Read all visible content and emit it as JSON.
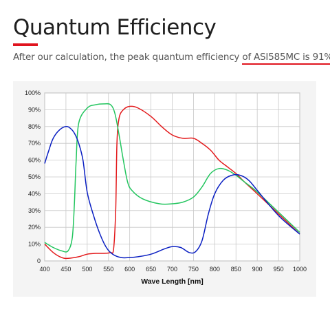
{
  "page": {
    "heading": "Quantum Efficiency",
    "subtitle_prefix": "After our calculation, the peak quantum efficiency ",
    "subtitle_highlight": "of ASI585MC is 91%",
    "subtitle_suffix": ".",
    "accent_color": "#e0141e"
  },
  "chart_data": {
    "type": "line",
    "title": "",
    "xlabel": "Wave Length [nm]",
    "ylabel": "",
    "xlim": [
      400,
      1000
    ],
    "ylim": [
      0,
      100
    ],
    "grid": true,
    "x_ticks": [
      "400",
      "450",
      "500",
      "550",
      "600",
      "650",
      "700",
      "750",
      "800",
      "850",
      "900",
      "950",
      "1000"
    ],
    "y_ticks": [
      "0",
      "10%",
      "20%",
      "30%",
      "40%",
      "50%",
      "60%",
      "70%",
      "80%",
      "90%",
      "100%"
    ],
    "series": [
      {
        "color": "#e31a1c",
        "x": [
          400,
          420,
          440,
          455,
          480,
          500,
          520,
          540,
          555,
          562,
          567,
          570,
          575,
          585,
          600,
          620,
          650,
          675,
          700,
          725,
          750,
          770,
          790,
          810,
          830,
          850,
          870,
          900,
          950,
          1000
        ],
        "y": [
          10,
          5,
          2,
          1.5,
          2.5,
          4,
          4.5,
          4.5,
          5,
          7,
          30,
          70,
          85,
          90,
          92,
          91,
          86,
          80,
          75,
          73,
          73,
          70,
          66,
          60,
          56,
          52,
          47,
          40,
          28,
          16
        ]
      },
      {
        "color": "#22c55e",
        "x": [
          400,
          420,
          440,
          455,
          465,
          470,
          474,
          480,
          500,
          520,
          540,
          555,
          565,
          575,
          585,
          595,
          605,
          630,
          670,
          700,
          725,
          750,
          770,
          790,
          810,
          830,
          850,
          870,
          900,
          950,
          1000
        ],
        "y": [
          11,
          8,
          6,
          6,
          14,
          35,
          60,
          82,
          91,
          93,
          93.5,
          93,
          88,
          75,
          60,
          47,
          42,
          37,
          34,
          34,
          35,
          38,
          44,
          52,
          55,
          54,
          51,
          47,
          41,
          29,
          17
        ]
      },
      {
        "color": "#0a1fc2",
        "x": [
          400,
          410,
          420,
          435,
          450,
          460,
          470,
          480,
          490,
          500,
          515,
          530,
          545,
          560,
          580,
          600,
          620,
          650,
          680,
          700,
          720,
          740,
          755,
          770,
          785,
          800,
          820,
          840,
          860,
          880,
          900,
          950,
          1000
        ],
        "y": [
          58,
          66,
          73,
          78,
          80,
          79,
          76,
          70,
          60,
          41,
          27,
          16,
          8,
          4,
          2,
          2,
          2.5,
          4,
          7,
          8.5,
          8,
          5,
          5.5,
          12,
          28,
          40,
          48,
          51,
          51,
          48,
          42,
          27,
          16
        ]
      }
    ]
  }
}
